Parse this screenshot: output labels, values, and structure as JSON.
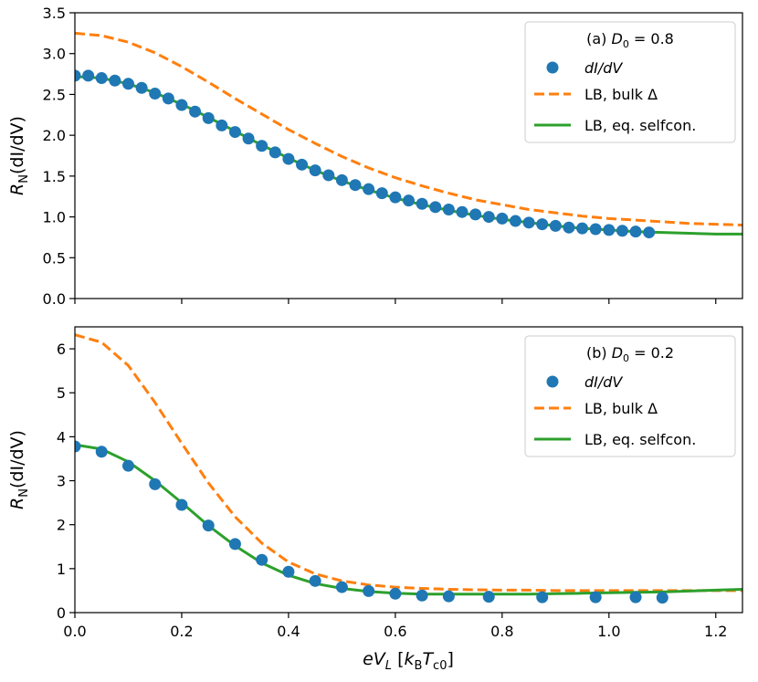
{
  "chart_data": [
    {
      "type": "line",
      "panel_label": "(a)",
      "legend_title": "(a) D₀ = 0.8",
      "ylabel": "Rₙ(dI/dV)",
      "xlabel": "",
      "xlim": [
        0.0,
        1.25
      ],
      "ylim": [
        0.0,
        3.5
      ],
      "xticks": [
        "0.0",
        "0.2",
        "0.4",
        "0.6",
        "0.8",
        "1.0",
        "1.2"
      ],
      "yticks": [
        "0.0",
        "0.5",
        "1.0",
        "1.5",
        "2.0",
        "2.5",
        "3.0",
        "3.5"
      ],
      "legend_position": "top-right",
      "series": [
        {
          "name": "dI/dV",
          "style": "markers",
          "color": "#1f77b4",
          "x": [
            0.0,
            0.025,
            0.05,
            0.075,
            0.1,
            0.125,
            0.15,
            0.175,
            0.2,
            0.225,
            0.25,
            0.275,
            0.3,
            0.325,
            0.35,
            0.375,
            0.4,
            0.425,
            0.45,
            0.475,
            0.5,
            0.525,
            0.55,
            0.575,
            0.6,
            0.625,
            0.65,
            0.675,
            0.7,
            0.725,
            0.75,
            0.775,
            0.8,
            0.825,
            0.85,
            0.875,
            0.9,
            0.925,
            0.95,
            0.975,
            1.0,
            1.025,
            1.05,
            1.075
          ],
          "y": [
            2.73,
            2.73,
            2.7,
            2.67,
            2.63,
            2.58,
            2.51,
            2.45,
            2.37,
            2.29,
            2.21,
            2.12,
            2.04,
            1.96,
            1.87,
            1.79,
            1.71,
            1.64,
            1.57,
            1.51,
            1.45,
            1.39,
            1.34,
            1.29,
            1.24,
            1.2,
            1.16,
            1.12,
            1.09,
            1.06,
            1.03,
            1.0,
            0.98,
            0.95,
            0.93,
            0.91,
            0.89,
            0.87,
            0.86,
            0.85,
            0.84,
            0.83,
            0.82,
            0.81
          ]
        },
        {
          "name": "LB, bulk Δ",
          "style": "dashed",
          "color": "#ff7f0e",
          "x": [
            0.0,
            0.05,
            0.1,
            0.15,
            0.2,
            0.25,
            0.3,
            0.35,
            0.4,
            0.45,
            0.5,
            0.55,
            0.6,
            0.65,
            0.7,
            0.75,
            0.8,
            0.85,
            0.9,
            0.95,
            1.0,
            1.05,
            1.1,
            1.15,
            1.2,
            1.25
          ],
          "y": [
            3.25,
            3.22,
            3.14,
            3.01,
            2.84,
            2.65,
            2.45,
            2.26,
            2.07,
            1.9,
            1.74,
            1.6,
            1.48,
            1.38,
            1.29,
            1.21,
            1.15,
            1.09,
            1.05,
            1.01,
            0.98,
            0.96,
            0.94,
            0.92,
            0.91,
            0.9
          ]
        },
        {
          "name": "LB, eq. selfcon.",
          "style": "solid",
          "color": "#2ca02c",
          "x": [
            0.0,
            0.05,
            0.1,
            0.15,
            0.2,
            0.25,
            0.3,
            0.35,
            0.4,
            0.45,
            0.5,
            0.55,
            0.6,
            0.65,
            0.7,
            0.75,
            0.8,
            0.85,
            0.9,
            0.95,
            1.0,
            1.05,
            1.1,
            1.15,
            1.2,
            1.25
          ],
          "y": [
            2.72,
            2.7,
            2.63,
            2.52,
            2.38,
            2.22,
            2.05,
            1.88,
            1.72,
            1.57,
            1.44,
            1.33,
            1.23,
            1.15,
            1.08,
            1.02,
            0.97,
            0.93,
            0.89,
            0.86,
            0.84,
            0.82,
            0.81,
            0.8,
            0.79,
            0.79
          ]
        }
      ]
    },
    {
      "type": "line",
      "panel_label": "(b)",
      "legend_title": "(b) D₀ = 0.2",
      "ylabel": "Rₙ(dI/dV)",
      "xlabel": "eVʟ [kʙTᴄ₀]",
      "xlim": [
        0.0,
        1.25
      ],
      "ylim": [
        0.0,
        6.5
      ],
      "xticks": [
        "0.0",
        "0.2",
        "0.4",
        "0.6",
        "0.8",
        "1.0",
        "1.2"
      ],
      "yticks": [
        "0",
        "1",
        "2",
        "3",
        "4",
        "5",
        "6"
      ],
      "legend_position": "top-right",
      "series": [
        {
          "name": "dI/dV",
          "style": "markers",
          "color": "#1f77b4",
          "x": [
            0.0,
            0.05,
            0.1,
            0.15,
            0.2,
            0.25,
            0.3,
            0.35,
            0.4,
            0.45,
            0.5,
            0.55,
            0.6,
            0.65,
            0.7,
            0.775,
            0.875,
            0.975,
            1.05,
            1.1
          ],
          "y": [
            3.78,
            3.66,
            3.34,
            2.92,
            2.45,
            1.98,
            1.56,
            1.2,
            0.93,
            0.72,
            0.58,
            0.49,
            0.43,
            0.39,
            0.37,
            0.36,
            0.35,
            0.35,
            0.35,
            0.34
          ]
        },
        {
          "name": "LB, bulk Δ",
          "style": "dashed",
          "color": "#ff7f0e",
          "x": [
            0.0,
            0.05,
            0.1,
            0.15,
            0.2,
            0.25,
            0.3,
            0.35,
            0.4,
            0.45,
            0.5,
            0.55,
            0.6,
            0.65,
            0.7,
            0.75,
            0.8,
            0.85,
            0.9,
            0.95,
            1.0,
            1.05,
            1.1,
            1.15,
            1.2,
            1.25
          ],
          "y": [
            6.32,
            6.15,
            5.62,
            4.78,
            3.85,
            2.95,
            2.18,
            1.58,
            1.15,
            0.88,
            0.72,
            0.63,
            0.58,
            0.55,
            0.53,
            0.52,
            0.51,
            0.51,
            0.5,
            0.5,
            0.5,
            0.5,
            0.5,
            0.5,
            0.5,
            0.5
          ]
        },
        {
          "name": "LB, eq. selfcon.",
          "style": "solid",
          "color": "#2ca02c",
          "x": [
            0.0,
            0.05,
            0.1,
            0.15,
            0.2,
            0.25,
            0.3,
            0.35,
            0.4,
            0.45,
            0.5,
            0.55,
            0.6,
            0.65,
            0.7,
            0.75,
            0.8,
            0.85,
            0.9,
            0.95,
            1.0,
            1.05,
            1.1,
            1.15,
            1.2,
            1.25
          ],
          "y": [
            3.82,
            3.72,
            3.43,
            3.0,
            2.5,
            1.98,
            1.52,
            1.13,
            0.85,
            0.66,
            0.55,
            0.48,
            0.44,
            0.42,
            0.42,
            0.42,
            0.42,
            0.42,
            0.43,
            0.44,
            0.45,
            0.46,
            0.47,
            0.49,
            0.51,
            0.53
          ]
        }
      ]
    }
  ]
}
